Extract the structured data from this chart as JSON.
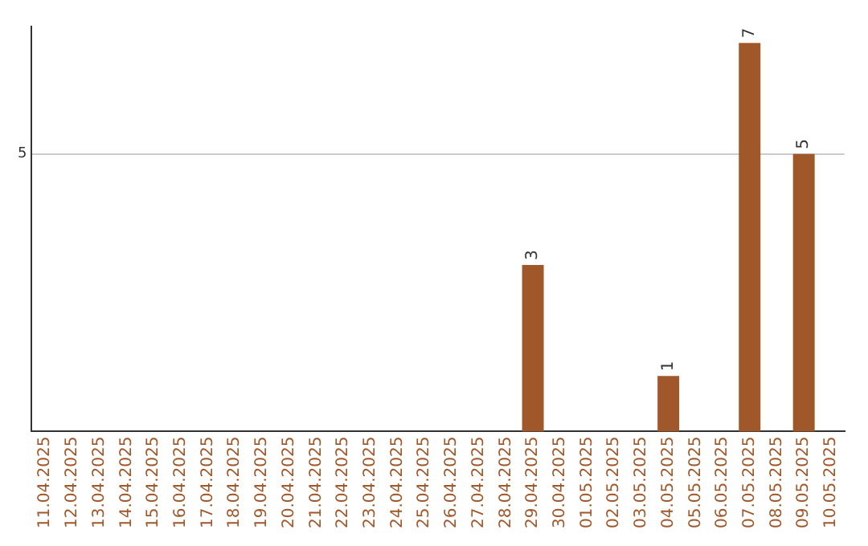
{
  "chart_data": {
    "type": "bar",
    "categories": [
      "11.04.2025",
      "12.04.2025",
      "13.04.2025",
      "14.04.2025",
      "15.04.2025",
      "16.04.2025",
      "17.04.2025",
      "18.04.2025",
      "19.04.2025",
      "20.04.2025",
      "21.04.2025",
      "22.04.2025",
      "23.04.2025",
      "24.04.2025",
      "25.04.2025",
      "26.04.2025",
      "27.04.2025",
      "28.04.2025",
      "29.04.2025",
      "30.04.2025",
      "01.05.2025",
      "02.05.2025",
      "03.05.2025",
      "04.05.2025",
      "05.05.2025",
      "06.05.2025",
      "07.05.2025",
      "08.05.2025",
      "09.05.2025",
      "10.05.2025"
    ],
    "values": [
      null,
      null,
      null,
      null,
      null,
      null,
      null,
      null,
      null,
      null,
      null,
      null,
      null,
      null,
      null,
      null,
      null,
      null,
      3,
      null,
      null,
      null,
      null,
      1,
      null,
      null,
      7,
      null,
      5,
      null
    ],
    "color": "#a0582b",
    "ylim": [
      0,
      7.3
    ],
    "yticks": [
      5
    ],
    "grid": "y",
    "data_labels": true,
    "legend": false
  }
}
